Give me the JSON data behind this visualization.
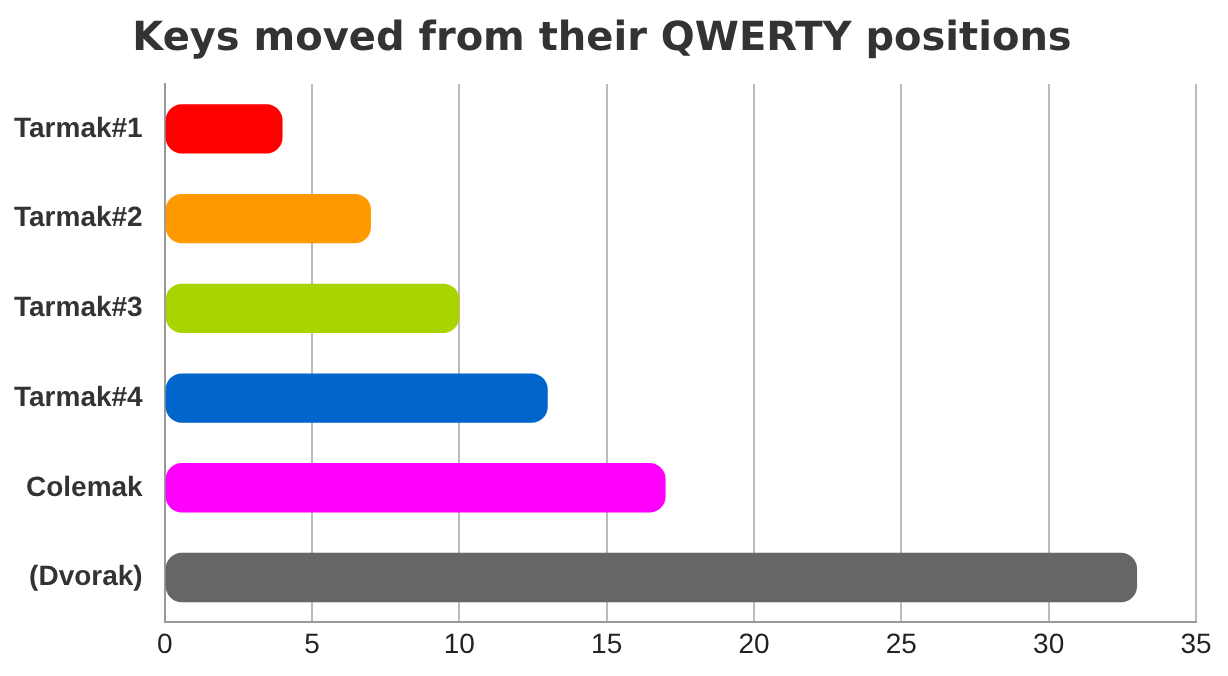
{
  "chart_data": {
    "type": "bar",
    "orientation": "horizontal",
    "title": "Keys moved from their QWERTY positions",
    "categories": [
      "Tarmak#1",
      "Tarmak#2",
      "Tarmak#3",
      "Tarmak#4",
      "Colemak",
      "(Dvorak)"
    ],
    "values": [
      4,
      7,
      10,
      13,
      17,
      33
    ],
    "colors": [
      "#ff0000",
      "#ff9900",
      "#aad400",
      "#0066cc",
      "#ff00ff",
      "#666666"
    ],
    "xlim": [
      0,
      35
    ],
    "xticks": [
      0,
      5,
      10,
      15,
      20,
      25,
      30,
      35
    ],
    "grid": "x",
    "legend": false
  }
}
